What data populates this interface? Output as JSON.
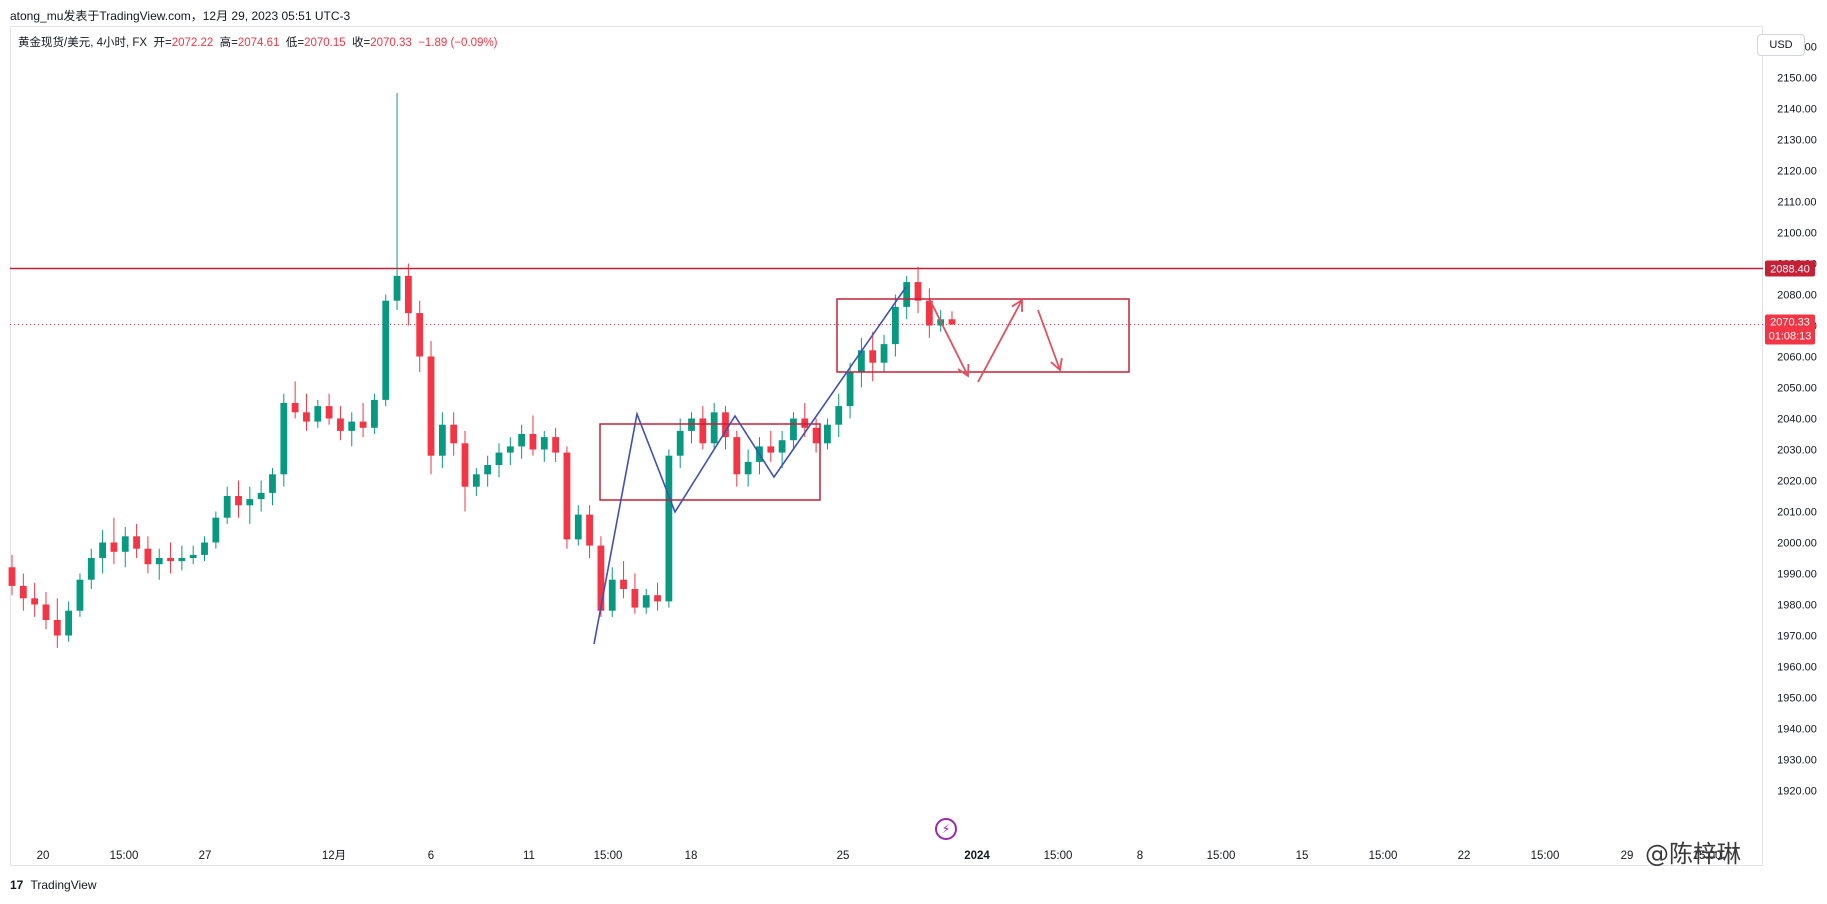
{
  "header": {
    "publisher": "atong_mu发表于TradingView.com，12月 29, 2023 05:51 UTC-3"
  },
  "legend": {
    "symbol": "黄金现货/美元, 4小时, FX",
    "open_label": "开=",
    "open": "2072.22",
    "high_label": "高=",
    "high": "2074.61",
    "low_label": "低=",
    "low": "2070.15",
    "close_label": "收=",
    "close": "2070.33",
    "change": "−1.89 (−0.09%)"
  },
  "currency_button": "USD",
  "footer": {
    "logo": "17",
    "brand": "TradingView"
  },
  "watermark": "@陈梓琳",
  "colors": {
    "up": "#089981",
    "down": "#f23645",
    "annotation_red": "#e0505f",
    "annotation_blue": "#3f51b5",
    "resistance": "#c62036"
  },
  "chart_data": {
    "type": "candlestick",
    "title": "",
    "xlabel": "",
    "ylabel": "",
    "ylim": [
      1912,
      2166
    ],
    "y_ticks": [
      1920,
      1930,
      1940,
      1950,
      1960,
      1970,
      1980,
      1990,
      2000,
      2010,
      2020,
      2030,
      2040,
      2050,
      2060,
      2070,
      2080,
      2090,
      2100,
      2110,
      2120,
      2130,
      2140,
      2150,
      2160
    ],
    "x_ticks": [
      "20",
      "15:00",
      "27",
      "12月",
      "6",
      "11",
      "15:00",
      "18",
      "25",
      "2024",
      "15:00",
      "8",
      "15:00",
      "15",
      "15:00",
      "22",
      "15:00",
      "29",
      "15:00"
    ],
    "price_labels": {
      "resistance": "2088.40",
      "last": "2070.33",
      "countdown": "01:08:13"
    },
    "resistance_level": 2088.4,
    "last_price": 2070.33,
    "candles": [
      [
        1992,
        1996,
        1983,
        1986
      ],
      [
        1986,
        1990,
        1978,
        1982
      ],
      [
        1982,
        1987,
        1976,
        1980
      ],
      [
        1980,
        1984,
        1972,
        1975
      ],
      [
        1975,
        1982,
        1966,
        1970
      ],
      [
        1970,
        1981,
        1968,
        1978
      ],
      [
        1978,
        1990,
        1976,
        1988
      ],
      [
        1988,
        1998,
        1985,
        1995
      ],
      [
        1995,
        2004,
        1990,
        2000
      ],
      [
        2000,
        2008,
        1993,
        1997
      ],
      [
        1997,
        2005,
        1992,
        2002
      ],
      [
        2002,
        2006,
        1995,
        1998
      ],
      [
        1998,
        2002,
        1990,
        1993
      ],
      [
        1993,
        1998,
        1988,
        1995
      ],
      [
        1995,
        2000,
        1990,
        1994
      ],
      [
        1994,
        1999,
        1991,
        1995
      ],
      [
        1995,
        1999,
        1993,
        1996
      ],
      [
        1996,
        2002,
        1994,
        2000
      ],
      [
        2000,
        2010,
        1998,
        2008
      ],
      [
        2008,
        2018,
        2006,
        2015
      ],
      [
        2015,
        2020,
        2008,
        2012
      ],
      [
        2012,
        2018,
        2006,
        2014
      ],
      [
        2014,
        2020,
        2010,
        2016
      ],
      [
        2016,
        2024,
        2012,
        2022
      ],
      [
        2022,
        2048,
        2018,
        2045
      ],
      [
        2045,
        2052,
        2040,
        2042
      ],
      [
        2042,
        2048,
        2036,
        2039
      ],
      [
        2039,
        2046,
        2037,
        2044
      ],
      [
        2044,
        2048,
        2038,
        2040
      ],
      [
        2040,
        2044,
        2033,
        2036
      ],
      [
        2036,
        2042,
        2031,
        2039
      ],
      [
        2039,
        2045,
        2034,
        2037
      ],
      [
        2037,
        2048,
        2035,
        2046
      ],
      [
        2046,
        2080,
        2044,
        2078
      ],
      [
        2078,
        2145,
        2075,
        2086
      ],
      [
        2086,
        2090,
        2070,
        2074
      ],
      [
        2074,
        2078,
        2055,
        2060
      ],
      [
        2060,
        2065,
        2022,
        2028
      ],
      [
        2028,
        2042,
        2024,
        2038
      ],
      [
        2038,
        2042,
        2028,
        2032
      ],
      [
        2032,
        2036,
        2010,
        2018
      ],
      [
        2018,
        2024,
        2015,
        2022
      ],
      [
        2022,
        2028,
        2018,
        2025
      ],
      [
        2025,
        2032,
        2021,
        2029
      ],
      [
        2029,
        2034,
        2025,
        2031
      ],
      [
        2031,
        2038,
        2027,
        2035
      ],
      [
        2035,
        2041,
        2028,
        2030
      ],
      [
        2030,
        2036,
        2026,
        2034
      ],
      [
        2034,
        2037,
        2026,
        2029
      ],
      [
        2029,
        2031,
        1998,
        2001
      ],
      [
        2001,
        2012,
        1999,
        2009
      ],
      [
        2009,
        2012,
        1995,
        1999
      ],
      [
        1999,
        2002,
        1976,
        1978
      ],
      [
        1978,
        1992,
        1976,
        1988
      ],
      [
        1988,
        1994,
        1982,
        1985
      ],
      [
        1985,
        1990,
        1977,
        1979
      ],
      [
        1979,
        1985,
        1977,
        1983
      ],
      [
        1983,
        1987,
        1978,
        1981
      ],
      [
        1981,
        2030,
        1979,
        2028
      ],
      [
        2028,
        2040,
        2024,
        2036
      ],
      [
        2036,
        2042,
        2032,
        2040
      ],
      [
        2040,
        2044,
        2030,
        2032
      ],
      [
        2032,
        2045,
        2030,
        2042
      ],
      [
        2042,
        2044,
        2030,
        2034
      ],
      [
        2034,
        2036,
        2018,
        2022
      ],
      [
        2022,
        2030,
        2018,
        2026
      ],
      [
        2026,
        2034,
        2022,
        2031
      ],
      [
        2031,
        2036,
        2026,
        2029
      ],
      [
        2029,
        2036,
        2024,
        2033
      ],
      [
        2033,
        2042,
        2030,
        2040
      ],
      [
        2040,
        2045,
        2034,
        2037
      ],
      [
        2037,
        2040,
        2029,
        2032
      ],
      [
        2032,
        2040,
        2030,
        2038
      ],
      [
        2038,
        2048,
        2034,
        2044
      ],
      [
        2044,
        2058,
        2040,
        2055
      ],
      [
        2055,
        2066,
        2050,
        2062
      ],
      [
        2062,
        2068,
        2052,
        2058
      ],
      [
        2058,
        2067,
        2055,
        2064
      ],
      [
        2064,
        2080,
        2060,
        2076
      ],
      [
        2076,
        2086,
        2072,
        2084
      ],
      [
        2084,
        2089,
        2074,
        2078
      ],
      [
        2078,
        2082,
        2066,
        2070
      ],
      [
        2070,
        2075,
        2068,
        2072
      ],
      [
        2072,
        2074.61,
        2070.15,
        2070.33
      ]
    ]
  }
}
